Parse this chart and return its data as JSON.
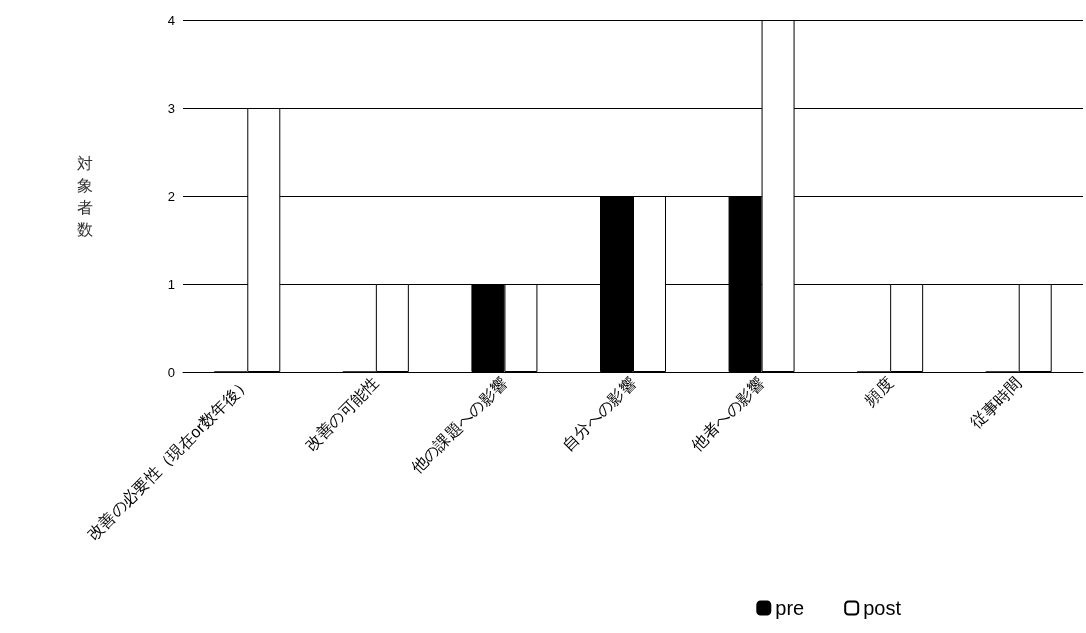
{
  "chart_data": {
    "type": "bar",
    "ylabel": "対象者数",
    "categories": [
      "改善の必要性（現在or数年後）",
      "改善の可能性",
      "他の課題への影響",
      "自分への影響",
      "他者への影響",
      "頻度",
      "従事時間"
    ],
    "series": [
      {
        "name": "pre",
        "color": "#000000",
        "values": [
          0,
          0,
          1,
          2,
          2,
          0,
          0
        ]
      },
      {
        "name": "post",
        "color": "#ffffff",
        "values": [
          3,
          1,
          1,
          2,
          4,
          1,
          1
        ]
      }
    ],
    "ylim": [
      0,
      4
    ],
    "yticks": [
      0,
      1,
      2,
      3,
      4
    ],
    "grid": "y",
    "legend": "bottom"
  }
}
